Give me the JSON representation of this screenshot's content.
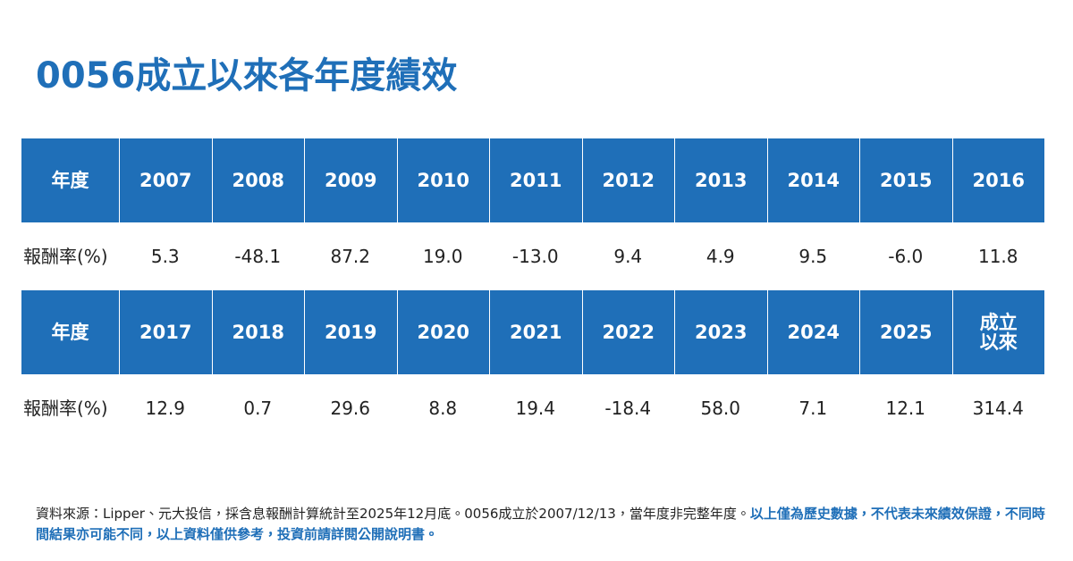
{
  "title": "0056成立以來各年度績效",
  "table": {
    "blocks": [
      {
        "header": [
          "年度",
          "2007",
          "2008",
          "2009",
          "2010",
          "2011",
          "2012",
          "2013",
          "2014",
          "2015",
          "2016"
        ],
        "values": [
          "報酬率(%)",
          "5.3",
          "-48.1",
          "87.2",
          "19.0",
          "-13.0",
          "9.4",
          "4.9",
          "9.5",
          "-6.0",
          "11.8"
        ]
      },
      {
        "header": [
          "年度",
          "2017",
          "2018",
          "2019",
          "2020",
          "2021",
          "2022",
          "2023",
          "2024",
          "2025",
          "成立\n以來"
        ],
        "values": [
          "報酬率(%)",
          "12.9",
          "0.7",
          "29.6",
          "8.8",
          "19.4",
          "-18.4",
          "58.0",
          "7.1",
          "12.1",
          "314.4"
        ]
      }
    ]
  },
  "footnote": {
    "text": "資料來源：Lipper、元大投信，採含息報酬計算統計至2025年12月底。0056成立於2007/12/13，當年度非完整年度。",
    "highlight": "以上僅為歷史數據，不代表未來績效保證，不同時間結果亦可能不同，以上資料僅供參考，投資前請詳閱公開說明書。"
  }
}
